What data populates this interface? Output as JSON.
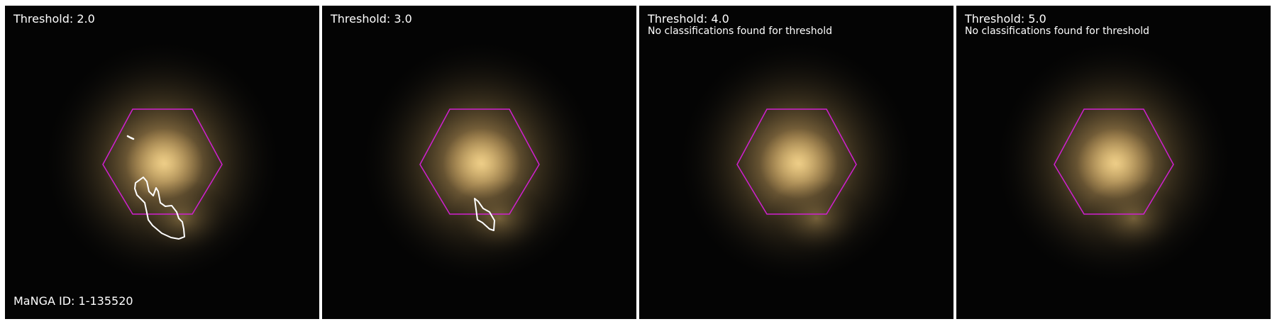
{
  "manga_id_label": "MaNGA ID: 1-135520",
  "colors": {
    "background": "#ffffff",
    "sky": "#040404",
    "galaxy_core": "#e6c47a",
    "galaxy_halo": "#8c7446",
    "ifu_hexagon": "#d020d0",
    "contour": "#ffffff"
  },
  "panels": [
    {
      "title": "Threshold: 2.0",
      "subtitle": "",
      "has_contour": true
    },
    {
      "title": "Threshold: 3.0",
      "subtitle": "",
      "has_contour": true
    },
    {
      "title": "Threshold: 4.0",
      "subtitle": "No classifications found for threshold",
      "has_contour": false
    },
    {
      "title": "Threshold: 5.0",
      "subtitle": "No classifications found for threshold",
      "has_contour": false
    }
  ]
}
